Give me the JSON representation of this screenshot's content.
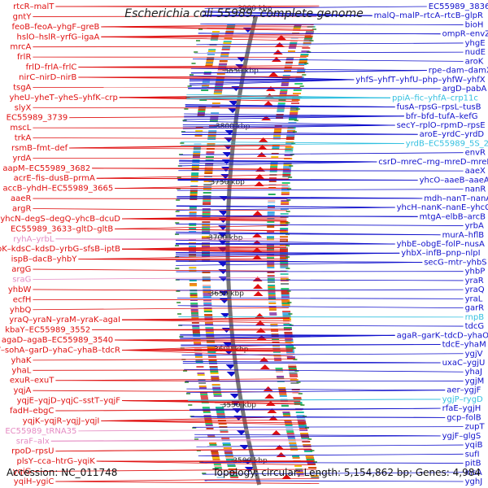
{
  "title": "Escherichia coli 55989, complete genome",
  "footer": {
    "accession": "Accession: NC_011748",
    "summary": "Topology: circular; Length: 5,154,862 bp; Genes: 4,984"
  },
  "colors": {
    "left_strand": "#e01010",
    "right_strand": "#1010cc",
    "rna": "#e58ac2",
    "rna_right": "#33c0e0",
    "backbone": "#777777"
  },
  "kbp_ticks": [
    "3900 kbp",
    "3850 kbp",
    "3800 kbp",
    "3750 kbp",
    "3700 kbp",
    "3650 kbp",
    "3600 kbp",
    "3550 kbp",
    "3500 kbp"
  ],
  "left_labels": [
    [
      "rtcR",
      "malT"
    ],
    [
      "gntY"
    ],
    [
      "feoB",
      "feoA",
      "yhgF",
      "greB"
    ],
    [
      "hslO",
      "hslR",
      "yrfG",
      "igaA"
    ],
    [
      "mrcA"
    ],
    [
      "frlR"
    ],
    [
      "frlD",
      "frlA",
      "frlC"
    ],
    [
      "nirC",
      "nirD",
      "nirB"
    ],
    [
      "tsgA"
    ],
    [
      "yheU",
      "yheT",
      "yheS",
      "yhfK",
      "crp"
    ],
    [
      "slyX"
    ],
    [
      "EC55989_3739"
    ],
    [
      "mscL"
    ],
    [
      "trkA"
    ],
    [
      "rsmB",
      "fmt",
      "def"
    ],
    [
      "yrdA"
    ],
    [
      "aapM",
      "EC55989_3682"
    ],
    [
      "acrE",
      "fis",
      "dusB",
      "prmA"
    ],
    [
      "accB",
      "yhdH",
      "EC55989_3665"
    ],
    [
      "aaeR"
    ],
    [
      "argR"
    ],
    [
      "yhcN",
      "degS",
      "degQ",
      "yhcB",
      "dcuD"
    ],
    [
      "EC55989_3633",
      "gltD",
      "gltB"
    ],
    [
      "ryhA",
      "yrbL"
    ],
    [
      "lptA",
      "yrbK",
      "kdsC",
      "kdsD",
      "yrbG",
      "sfsB",
      "iptB"
    ],
    [
      "ispB",
      "dacB",
      "yhbY"
    ],
    [
      "argG"
    ],
    [
      "sraG"
    ],
    [
      "yhbW"
    ],
    [
      "ecfH"
    ],
    [
      "yhbQ"
    ],
    [
      "yraQ",
      "yraN",
      "yraM",
      "yraK",
      "agaI"
    ],
    [
      "kbaY",
      "EC55989_3552"
    ],
    [
      "agaD",
      "agaB",
      "EC55989_3540"
    ],
    [
      "kbaZ",
      "yhaV",
      "sohA",
      "garD",
      "yhaC",
      "yhaB",
      "tdcR"
    ],
    [
      "yhaK"
    ],
    [
      "yhaL"
    ],
    [
      "exuR",
      "exuT"
    ],
    [
      "yqjA"
    ],
    [
      "yqjE",
      "yqjD",
      "yqjC",
      "sstT",
      "yqjF"
    ],
    [
      "fadH",
      "ebgC"
    ],
    [
      "yqjK",
      "yqjR",
      "yqjJ",
      "yqjI"
    ],
    [
      "EC55989_tRNA35"
    ],
    [
      "sraF",
      "alx"
    ],
    [
      "rpoD",
      "rpsU"
    ],
    [
      "plsY",
      "cca",
      "htrG",
      "yqiK"
    ],
    [
      "yqiG"
    ],
    [
      "yqiH",
      "ygiC"
    ]
  ],
  "right_labels": [
    [
      "EC55989_3836"
    ],
    [
      "malQ",
      "malP",
      "rtcA",
      "rtcB",
      "glpR"
    ],
    [
      "bioH"
    ],
    [
      "ompR",
      "envZ"
    ],
    [
      "yhgE"
    ],
    [
      "nudE"
    ],
    [
      "aroK"
    ],
    [
      "rpe",
      "dam",
      "damX"
    ],
    [
      "yhfS",
      "yhfT",
      "yhfU",
      "php",
      "yhfW",
      "yhfX"
    ],
    [
      "argD",
      "pabA"
    ],
    [
      "ppiA",
      "fic",
      "yhfA",
      "crp11c"
    ],
    [
      "fusA",
      "rpsG",
      "rpsL",
      "tusB"
    ],
    [
      "bfr",
      "bfd",
      "tufA",
      "kefG"
    ],
    [
      "secY",
      "rplO",
      "rpmD",
      "rpsE"
    ],
    [
      "aroE",
      "yrdC",
      "yrdD"
    ],
    [
      "yrdB",
      "EC55989_5S_2"
    ],
    [
      "envR"
    ],
    [
      "csrD",
      "mreC",
      "rng",
      "mreD",
      "mreB"
    ],
    [
      "aaeX"
    ],
    [
      "yhcO",
      "aaeB",
      "aaeA"
    ],
    [
      "nanR"
    ],
    [
      "mdh",
      "nanT",
      "nanA"
    ],
    [
      "yhcH",
      "nanK",
      "nanE",
      "yhcC"
    ],
    [
      "mtgA",
      "elbB",
      "arcB"
    ],
    [
      "yrbA"
    ],
    [
      "murA",
      "hflB"
    ],
    [
      "yhbE",
      "obgE",
      "folP",
      "nusA"
    ],
    [
      "yhbX",
      "infB",
      "pnp",
      "nlpI"
    ],
    [
      "secG",
      "mtr",
      "yhbS"
    ],
    [
      "yhbP"
    ],
    [
      "yraR"
    ],
    [
      "yraQ"
    ],
    [
      "yraL"
    ],
    [
      "garR"
    ],
    [
      "rnpB"
    ],
    [
      "tdcG"
    ],
    [
      "agaR",
      "garK",
      "tdcD",
      "yhaO"
    ],
    [
      "tdcE",
      "yhaM"
    ],
    [
      "ygjV"
    ],
    [
      "uxaC",
      "ygjU"
    ],
    [
      "yhaJ"
    ],
    [
      "ygjM"
    ],
    [
      "aer",
      "ygjF"
    ],
    [
      "ygjP",
      "rygD"
    ],
    [
      "rfaE",
      "ygjH"
    ],
    [
      "gcp",
      "folB"
    ],
    [
      "zupT"
    ],
    [
      "ygjF",
      "glgS"
    ],
    [
      "yqiB"
    ],
    [
      "sufI"
    ],
    [
      "pitB"
    ],
    [
      "insA"
    ],
    [
      "yghJ"
    ]
  ]
}
